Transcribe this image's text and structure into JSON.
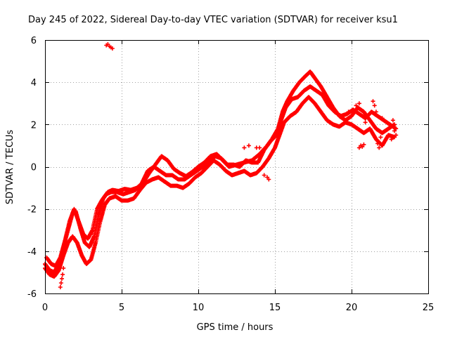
{
  "chart_data": {
    "type": "scatter",
    "title": "Day 245 of 2022, Sidereal Day-to-day VTEC variation (SDTVAR) for receiver ksu1",
    "xlabel": "GPS time / hours",
    "ylabel": "SDTVAR / TECUs",
    "xlim": [
      0,
      25
    ],
    "ylim": [
      -6,
      6
    ],
    "xticks": [
      0,
      5,
      10,
      15,
      20,
      25
    ],
    "yticks": [
      -6,
      -4,
      -2,
      0,
      2,
      4,
      6
    ],
    "grid": true,
    "marker": "+",
    "color": "#ff0000",
    "series": [
      {
        "tracks": [
          [
            [
              0.0,
              -4.6
            ],
            [
              0.3,
              -4.9
            ],
            [
              0.6,
              -5.0
            ],
            [
              0.9,
              -4.6
            ],
            [
              1.2,
              -3.8
            ],
            [
              1.5,
              -3.0
            ],
            [
              1.8,
              -2.2
            ],
            [
              2.0,
              -2.1
            ],
            [
              2.3,
              -2.9
            ],
            [
              2.6,
              -3.6
            ],
            [
              2.9,
              -3.8
            ],
            [
              3.2,
              -3.3
            ],
            [
              3.5,
              -2.3
            ],
            [
              3.8,
              -1.5
            ],
            [
              4.1,
              -1.2
            ],
            [
              4.4,
              -1.1
            ],
            [
              4.8,
              -1.15
            ],
            [
              5.2,
              -1.05
            ],
            [
              5.6,
              -1.1
            ],
            [
              6.0,
              -1.0
            ],
            [
              6.4,
              -0.75
            ],
            [
              6.8,
              -0.3
            ],
            [
              7.2,
              0.1
            ],
            [
              7.6,
              0.5
            ],
            [
              8.0,
              0.3
            ],
            [
              8.4,
              -0.1
            ],
            [
              8.8,
              -0.3
            ],
            [
              9.2,
              -0.45
            ],
            [
              9.6,
              -0.25
            ],
            [
              10.0,
              0.0
            ],
            [
              10.4,
              0.2
            ],
            [
              10.8,
              0.5
            ],
            [
              11.2,
              0.6
            ],
            [
              11.6,
              0.3
            ],
            [
              12.0,
              0.0
            ],
            [
              12.5,
              0.1
            ],
            [
              13.0,
              0.2
            ],
            [
              13.5,
              0.3
            ],
            [
              14.0,
              0.6
            ],
            [
              14.5,
              1.0
            ],
            [
              14.8,
              1.3
            ],
            [
              15.2,
              1.8
            ],
            [
              15.5,
              2.6
            ],
            [
              15.8,
              3.1
            ],
            [
              16.2,
              3.6
            ],
            [
              16.6,
              4.0
            ],
            [
              17.0,
              4.3
            ],
            [
              17.3,
              4.5
            ],
            [
              17.6,
              4.2
            ],
            [
              18.0,
              3.8
            ],
            [
              18.4,
              3.3
            ],
            [
              18.8,
              2.8
            ],
            [
              19.2,
              2.4
            ],
            [
              19.6,
              2.2
            ],
            [
              20.0,
              2.4
            ],
            [
              20.4,
              2.8
            ],
            [
              20.8,
              2.6
            ],
            [
              21.2,
              2.2
            ],
            [
              21.6,
              1.8
            ],
            [
              22.0,
              1.6
            ],
            [
              22.4,
              1.8
            ],
            [
              22.8,
              2.0
            ]
          ],
          [
            [
              0.0,
              -4.8
            ],
            [
              0.3,
              -5.1
            ],
            [
              0.6,
              -5.2
            ],
            [
              0.9,
              -4.9
            ],
            [
              1.2,
              -4.2
            ],
            [
              1.5,
              -3.6
            ],
            [
              1.8,
              -3.3
            ],
            [
              2.1,
              -3.6
            ],
            [
              2.4,
              -4.2
            ],
            [
              2.7,
              -4.6
            ],
            [
              3.0,
              -4.4
            ],
            [
              3.3,
              -3.6
            ],
            [
              3.6,
              -2.6
            ],
            [
              3.9,
              -1.8
            ],
            [
              4.2,
              -1.5
            ],
            [
              4.6,
              -1.4
            ],
            [
              5.0,
              -1.6
            ],
            [
              5.4,
              -1.6
            ],
            [
              5.8,
              -1.5
            ],
            [
              6.2,
              -1.1
            ],
            [
              6.6,
              -0.75
            ],
            [
              7.0,
              -0.6
            ],
            [
              7.4,
              -0.5
            ],
            [
              7.8,
              -0.7
            ],
            [
              8.2,
              -0.9
            ],
            [
              8.6,
              -0.9
            ],
            [
              9.0,
              -1.0
            ],
            [
              9.4,
              -0.8
            ],
            [
              9.8,
              -0.5
            ],
            [
              10.2,
              -0.3
            ],
            [
              10.6,
              0.0
            ],
            [
              11.0,
              0.3
            ],
            [
              11.4,
              0.1
            ],
            [
              11.8,
              -0.2
            ],
            [
              12.2,
              -0.4
            ],
            [
              12.6,
              -0.3
            ],
            [
              13.0,
              -0.2
            ],
            [
              13.4,
              -0.4
            ],
            [
              13.8,
              -0.3
            ],
            [
              14.2,
              0.0
            ],
            [
              14.6,
              0.4
            ],
            [
              15.0,
              0.9
            ],
            [
              15.3,
              1.5
            ],
            [
              15.6,
              2.1
            ],
            [
              16.0,
              2.4
            ],
            [
              16.4,
              2.6
            ],
            [
              16.8,
              3.0
            ],
            [
              17.2,
              3.3
            ],
            [
              17.6,
              3.0
            ],
            [
              18.0,
              2.6
            ],
            [
              18.4,
              2.2
            ],
            [
              18.8,
              2.0
            ],
            [
              19.2,
              1.9
            ],
            [
              19.6,
              2.1
            ],
            [
              20.0,
              2.0
            ],
            [
              20.4,
              1.8
            ],
            [
              20.8,
              1.6
            ],
            [
              21.2,
              1.8
            ],
            [
              21.6,
              1.3
            ],
            [
              22.0,
              1.0
            ],
            [
              22.4,
              1.5
            ],
            [
              22.8,
              1.4
            ]
          ],
          [
            [
              0.1,
              -4.3
            ],
            [
              0.4,
              -4.6
            ],
            [
              0.7,
              -4.7
            ],
            [
              1.0,
              -4.3
            ],
            [
              1.3,
              -3.5
            ],
            [
              1.6,
              -2.6
            ],
            [
              1.9,
              -2.0
            ],
            [
              2.2,
              -2.6
            ],
            [
              2.5,
              -3.2
            ],
            [
              2.8,
              -3.4
            ],
            [
              3.1,
              -3.0
            ],
            [
              3.4,
              -2.0
            ],
            [
              3.7,
              -1.6
            ],
            [
              4.0,
              -1.3
            ],
            [
              4.3,
              -1.2
            ],
            [
              4.7,
              -1.2
            ],
            [
              5.1,
              -1.3
            ],
            [
              5.5,
              -1.2
            ],
            [
              5.9,
              -1.1
            ],
            [
              6.3,
              -0.8
            ],
            [
              6.7,
              -0.2
            ],
            [
              7.1,
              0.0
            ],
            [
              7.5,
              -0.2
            ],
            [
              7.9,
              -0.4
            ],
            [
              8.3,
              -0.4
            ],
            [
              8.7,
              -0.6
            ],
            [
              9.1,
              -0.6
            ],
            [
              9.5,
              -0.4
            ],
            [
              9.9,
              -0.2
            ],
            [
              10.3,
              0.0
            ],
            [
              10.7,
              0.2
            ],
            [
              11.1,
              0.5
            ],
            [
              11.5,
              0.4
            ],
            [
              11.9,
              0.1
            ],
            [
              12.3,
              0.1
            ],
            [
              12.7,
              0.0
            ],
            [
              13.1,
              0.3
            ],
            [
              13.5,
              0.2
            ],
            [
              13.9,
              0.2
            ],
            [
              14.3,
              0.8
            ],
            [
              14.7,
              1.2
            ],
            [
              15.1,
              1.5
            ],
            [
              15.4,
              2.2
            ],
            [
              15.7,
              2.8
            ],
            [
              16.1,
              3.2
            ],
            [
              16.5,
              3.3
            ],
            [
              16.9,
              3.6
            ],
            [
              17.3,
              3.8
            ],
            [
              17.7,
              3.6
            ],
            [
              18.1,
              3.4
            ],
            [
              18.5,
              2.9
            ],
            [
              18.9,
              2.6
            ],
            [
              19.3,
              2.4
            ],
            [
              19.7,
              2.5
            ],
            [
              20.1,
              2.7
            ],
            [
              20.5,
              2.5
            ],
            [
              20.9,
              2.3
            ],
            [
              21.3,
              2.6
            ],
            [
              21.7,
              2.4
            ],
            [
              22.1,
              2.2
            ],
            [
              22.5,
              2.0
            ],
            [
              22.9,
              1.8
            ]
          ]
        ],
        "scattered": [
          [
            4.0,
            5.75
          ],
          [
            4.2,
            5.7
          ],
          [
            4.4,
            5.6
          ],
          [
            4.1,
            5.8
          ],
          [
            4.3,
            5.65
          ],
          [
            1.0,
            -5.7
          ],
          [
            1.05,
            -5.5
          ],
          [
            1.1,
            -5.3
          ],
          [
            1.15,
            -5.1
          ],
          [
            1.2,
            -4.8
          ],
          [
            20.6,
            1.0
          ],
          [
            20.5,
            0.9
          ],
          [
            20.7,
            0.95
          ],
          [
            20.8,
            1.05
          ],
          [
            22.6,
            1.3
          ],
          [
            22.9,
            1.5
          ],
          [
            22.7,
            2.2
          ],
          [
            22.8,
            1.7
          ],
          [
            21.4,
            3.1
          ],
          [
            21.5,
            2.9
          ],
          [
            21.6,
            2.6
          ],
          [
            22.0,
            2.3
          ],
          [
            22.3,
            2.1
          ],
          [
            21.9,
            1.4
          ],
          [
            21.7,
            1.1
          ],
          [
            21.8,
            0.9
          ],
          [
            20.5,
            3.0
          ],
          [
            20.3,
            2.9
          ],
          [
            20.9,
            2.1
          ],
          [
            19.8,
            2.6
          ],
          [
            14.3,
            -0.4
          ],
          [
            14.5,
            -0.5
          ],
          [
            14.6,
            -0.6
          ],
          [
            14.0,
            0.9
          ],
          [
            13.8,
            0.9
          ],
          [
            13.3,
            1.0
          ],
          [
            13.0,
            0.9
          ]
        ]
      }
    ]
  }
}
